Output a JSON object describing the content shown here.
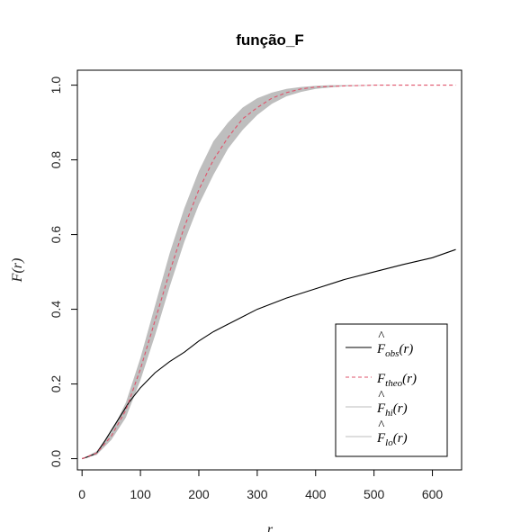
{
  "chart_data": {
    "type": "line",
    "title": "função_F",
    "xlabel": "r",
    "ylabel": "F(r)",
    "xlim": [
      -8,
      650
    ],
    "ylim": [
      -0.03,
      1.04
    ],
    "xticks": [
      "0",
      "100",
      "200",
      "300",
      "400",
      "500",
      "600"
    ],
    "yticks": [
      "0.0",
      "0.2",
      "0.4",
      "0.6",
      "0.8",
      "1.0"
    ],
    "grid": false,
    "legend_position": "bottom-right",
    "band": {
      "color": "#bebebe",
      "x": [
        0,
        25,
        50,
        75,
        100,
        125,
        150,
        175,
        200,
        225,
        250,
        275,
        300,
        325,
        350,
        375,
        400,
        425,
        450,
        500,
        550,
        600,
        640
      ],
      "upper": [
        0.0,
        0.02,
        0.07,
        0.15,
        0.27,
        0.41,
        0.55,
        0.67,
        0.77,
        0.85,
        0.9,
        0.94,
        0.965,
        0.98,
        0.99,
        0.995,
        0.998,
        1.0,
        1.0,
        1.0,
        1.0,
        1.0,
        1.0
      ],
      "lower": [
        0.0,
        0.01,
        0.05,
        0.11,
        0.21,
        0.33,
        0.46,
        0.58,
        0.68,
        0.76,
        0.83,
        0.88,
        0.92,
        0.95,
        0.97,
        0.982,
        0.99,
        0.994,
        0.997,
        0.999,
        1.0,
        1.0,
        1.0
      ]
    },
    "series": [
      {
        "name": "obs",
        "color": "#000000",
        "dash": "solid",
        "x": [
          0,
          10,
          25,
          40,
          60,
          80,
          100,
          125,
          150,
          175,
          200,
          225,
          250,
          275,
          300,
          325,
          350,
          400,
          450,
          500,
          550,
          600,
          640
        ],
        "y": [
          0.0,
          0.005,
          0.015,
          0.05,
          0.1,
          0.15,
          0.19,
          0.23,
          0.26,
          0.285,
          0.315,
          0.34,
          0.36,
          0.38,
          0.4,
          0.415,
          0.43,
          0.455,
          0.48,
          0.5,
          0.52,
          0.538,
          0.56
        ]
      },
      {
        "name": "theo",
        "color": "#df536b",
        "dash": "dashed",
        "x": [
          0,
          25,
          50,
          75,
          100,
          125,
          150,
          175,
          200,
          225,
          250,
          275,
          300,
          325,
          350,
          375,
          400,
          450,
          500,
          550,
          600,
          640
        ],
        "y": [
          0.0,
          0.015,
          0.06,
          0.13,
          0.24,
          0.37,
          0.5,
          0.62,
          0.72,
          0.8,
          0.86,
          0.91,
          0.94,
          0.965,
          0.98,
          0.99,
          0.995,
          0.998,
          1.0,
          1.0,
          1.0,
          1.0
        ]
      }
    ],
    "legend": [
      {
        "id": "obs",
        "color": "#000000",
        "dash": "solid",
        "hat": true,
        "main": "F",
        "sub": "obs",
        "arg": "(r)"
      },
      {
        "id": "theo",
        "color": "#df536b",
        "dash": "dashed",
        "hat": false,
        "main": "F",
        "sub": "theo",
        "arg": "(r)"
      },
      {
        "id": "hi",
        "color": "#bebebe",
        "dash": "solid",
        "hat": true,
        "main": "F",
        "sub": "hi",
        "arg": "(r)"
      },
      {
        "id": "lo",
        "color": "#bebebe",
        "dash": "solid",
        "hat": true,
        "main": "F",
        "sub": "lo",
        "arg": "(r)"
      }
    ]
  }
}
